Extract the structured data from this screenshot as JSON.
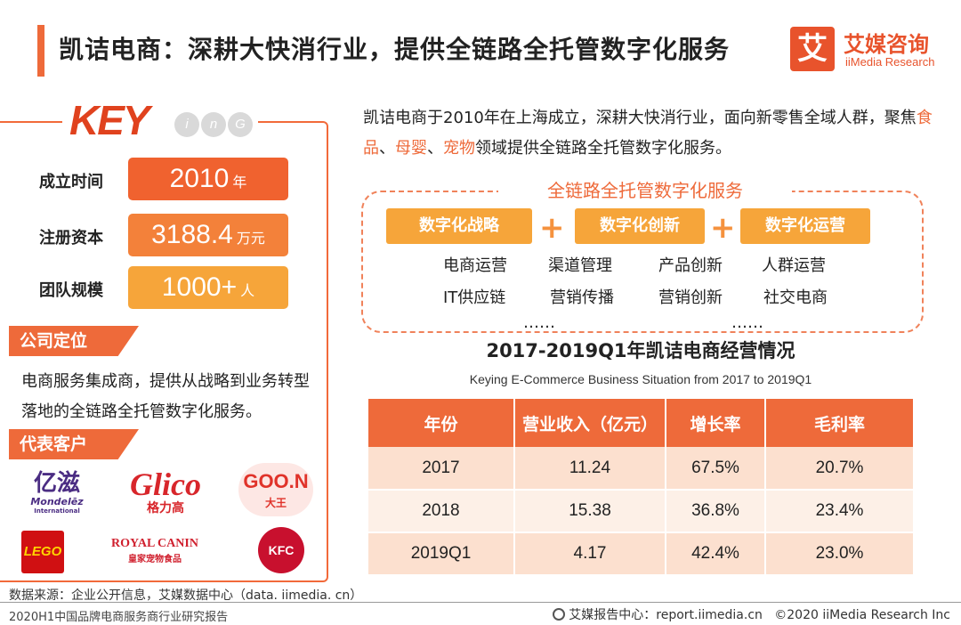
{
  "header": {
    "title": "凯诘电商：深耕大快消行业，提供全链路全托管数字化服务",
    "brand_mark": "艾",
    "brand_cn": "艾媒咨询",
    "brand_en": "iiMedia Research"
  },
  "logo": {
    "key": "KEY",
    "ing": [
      "i",
      "n",
      "G"
    ]
  },
  "stats": [
    {
      "label": "成立时间",
      "value": "2010",
      "unit": "年",
      "color": "#f0622f"
    },
    {
      "label": "注册资本",
      "value": "3188.4",
      "unit": "万元",
      "color": "#f3813a"
    },
    {
      "label": "团队规模",
      "value": "1000+",
      "unit": "人",
      "color": "#f6a53a"
    }
  ],
  "positioning": {
    "heading": "公司定位",
    "text": "电商服务集成商，提供从战略到业务转型落地的全链路全托管数字化服务。"
  },
  "clients": {
    "heading": "代表客户",
    "items": [
      {
        "name": "亿滋",
        "sub": "Mondelēz",
        "sub2": "International",
        "color": "#4b2d83"
      },
      {
        "name": "Glico",
        "sub": "格力高",
        "color": "#d8262b"
      },
      {
        "name": "GOO.N",
        "sub": "大王",
        "color": "#e0332a"
      },
      {
        "name": "LEGO",
        "color": "#d01012"
      },
      {
        "name": "ROYAL CANIN",
        "sub": "皇家宠物食品",
        "color": "#d0202e"
      },
      {
        "name": "KFC",
        "color": "#c8102e"
      }
    ]
  },
  "description": {
    "part1": "凯诘电商于2010年在上海成立，深耕大快消行业，面向新零售全域人群，聚焦",
    "hl1": "食品",
    "sep1": "、",
    "hl2": "母婴",
    "sep2": "、",
    "hl3": "宠物",
    "part2": "领域提供全链路全托管数字化服务。"
  },
  "chain": {
    "title": "全链路全托管数字化服务",
    "caps": [
      "数字化战略",
      "数字化创新",
      "数字化运营"
    ],
    "plus": "+",
    "items_row1": [
      "电商运营",
      "渠道管理",
      "产品创新",
      "人群运营"
    ],
    "items_row2": [
      "IT供应链",
      "营销传播",
      "营销创新",
      "社交电商"
    ],
    "ellipsis": "……"
  },
  "table": {
    "title": "2017-2019Q1年凯诘电商经营情况",
    "subtitle": "Keying E-Commerce Business Situation from 2017 to 2019Q1",
    "headers": [
      "年份",
      "营业收入（亿元）",
      "增长率",
      "毛利率"
    ],
    "rows": [
      [
        "2017",
        "11.24",
        "67.5%",
        "20.7%"
      ],
      [
        "2018",
        "15.38",
        "36.8%",
        "23.4%"
      ],
      [
        "2019Q1",
        "4.17",
        "42.4%",
        "23.0%"
      ]
    ]
  },
  "footer": {
    "source": "数据来源：企业公开信息，艾媒数据中心（data. iimedia. cn）",
    "report": "2020H1中国品牌电商服务商行业研究报告",
    "site": "艾媒报告中心：report.iimedia.cn",
    "copyright": "©2020  iiMedia Research  Inc"
  }
}
